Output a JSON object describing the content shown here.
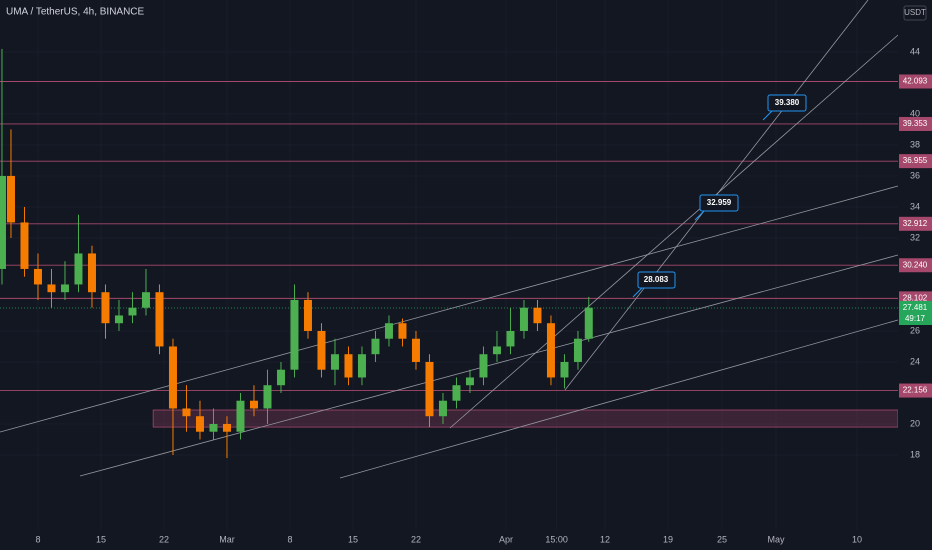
{
  "chart_data": {
    "type": "candlestick",
    "title": "UMA / TetherUS, 4h, BINANCE",
    "currency": "USDT",
    "colors": {
      "up": "#4caf50",
      "down": "#f57c00",
      "level": "#a6486b",
      "current": "#26a65b"
    },
    "xlim": [
      2.78,
      102.56
    ],
    "xticks": [
      {
        "value": 7,
        "label": "8"
      },
      {
        "value": 14,
        "label": "15"
      },
      {
        "value": 21,
        "label": "22"
      },
      {
        "value": 28,
        "label": "Mar"
      },
      {
        "value": 35,
        "label": "8"
      },
      {
        "value": 42,
        "label": "15"
      },
      {
        "value": 49,
        "label": "22"
      },
      {
        "value": 59,
        "label": "Apr"
      },
      {
        "value": 64.625,
        "label": "15:00"
      },
      {
        "value": 70,
        "label": "12"
      },
      {
        "value": 77,
        "label": "19"
      },
      {
        "value": 83,
        "label": "25"
      },
      {
        "value": 89,
        "label": "May"
      },
      {
        "value": 98,
        "label": "10"
      }
    ],
    "ylim": [
      13.16,
      47.35
    ],
    "yticks": [
      44,
      40,
      38,
      36,
      34,
      32,
      26,
      24,
      20,
      18
    ],
    "x": [
      3,
      4,
      5.5,
      7,
      8.5,
      10,
      11.5,
      13,
      14.5,
      16,
      17.5,
      19,
      20.5,
      22,
      23.5,
      25,
      26.5,
      28,
      29.5,
      31,
      32.5,
      34,
      35.5,
      37,
      38.5,
      40,
      41.5,
      43,
      44.5,
      46,
      47.5,
      49,
      50.5,
      52,
      53.5,
      55,
      56.5,
      58,
      59.5,
      61,
      62.5,
      64,
      65.5,
      67,
      68.2
    ],
    "open": [
      30,
      36,
      33,
      30,
      29,
      28.5,
      29,
      31,
      28.5,
      26.5,
      27,
      27.5,
      28.5,
      25,
      21,
      20.5,
      19.5,
      20,
      19.5,
      21.5,
      21,
      22.5,
      23.5,
      28,
      26,
      23.5,
      24.5,
      23,
      24.5,
      25.5,
      26.5,
      25.5,
      24,
      20.5,
      21.5,
      22.5,
      23,
      24.5,
      25,
      26,
      27.5,
      26.5,
      23,
      24,
      25.5
    ],
    "high": [
      44.2,
      39,
      34,
      31,
      30,
      30.5,
      33.5,
      31.5,
      29,
      28,
      28.5,
      30,
      29,
      25.5,
      22.5,
      21.5,
      21,
      20.5,
      22,
      22.5,
      23.5,
      24,
      29,
      28.5,
      26.5,
      25.5,
      25,
      25,
      26,
      27,
      26.8,
      26,
      24.5,
      22,
      23,
      23.5,
      25,
      26,
      27.5,
      28,
      28,
      27,
      24.5,
      26,
      28.2
    ],
    "low": [
      29,
      32,
      29.5,
      28,
      27.5,
      28,
      28.5,
      27.5,
      25.5,
      26,
      26.5,
      27,
      24.5,
      18,
      19.5,
      19,
      19,
      17.8,
      19,
      20.5,
      20,
      22,
      23,
      25.5,
      23,
      22.5,
      22.5,
      22.5,
      24,
      25,
      25,
      23.5,
      19.8,
      20,
      21,
      22,
      22.5,
      24,
      24.5,
      25.5,
      26,
      22.5,
      22.3,
      23.5,
      25.3
    ],
    "close": [
      36,
      33,
      30,
      29,
      28.5,
      29,
      31,
      28.5,
      26.5,
      27,
      27.5,
      28.5,
      25,
      21,
      20.5,
      19.5,
      20,
      19.5,
      21.5,
      21,
      22.5,
      23.5,
      28,
      26,
      23.5,
      24.5,
      23,
      24.5,
      25.5,
      26.5,
      25.5,
      24,
      20.5,
      21.5,
      22.5,
      23,
      24.5,
      25,
      26,
      27.5,
      26.5,
      23,
      24,
      25.5,
      27.5
    ],
    "levels": [
      42.093,
      39.353,
      36.955,
      32.912,
      {
        "value": 30.24,
        "label": "30.240"
      },
      28.102,
      22.156
    ],
    "current_price": 27.481,
    "countdown": "49:17",
    "zone": {
      "x0": 19.8,
      "low": 19.8,
      "high": 20.9
    },
    "callouts": [
      "39.380",
      "32.959",
      "28.083"
    ]
  }
}
